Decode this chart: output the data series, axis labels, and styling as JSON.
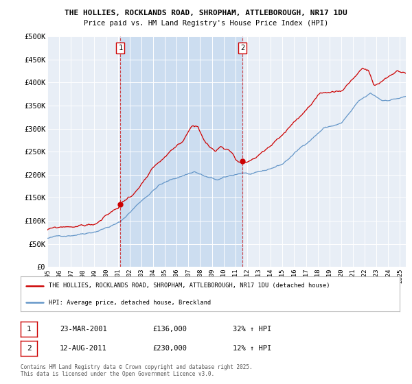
{
  "title1": "THE HOLLIES, ROCKLANDS ROAD, SHROPHAM, ATTLEBOROUGH, NR17 1DU",
  "title2": "Price paid vs. HM Land Registry's House Price Index (HPI)",
  "legend_line1": "THE HOLLIES, ROCKLANDS ROAD, SHROPHAM, ATTLEBOROUGH, NR17 1DU (detached house)",
  "legend_line2": "HPI: Average price, detached house, Breckland",
  "annotation1_label": "1",
  "annotation1_date": "23-MAR-2001",
  "annotation1_price": "£136,000",
  "annotation1_hpi": "32% ↑ HPI",
  "annotation2_label": "2",
  "annotation2_date": "12-AUG-2011",
  "annotation2_price": "£230,000",
  "annotation2_hpi": "12% ↑ HPI",
  "footnote": "Contains HM Land Registry data © Crown copyright and database right 2025.\nThis data is licensed under the Open Government Licence v3.0.",
  "hpi_color": "#6496c8",
  "price_color": "#cc0000",
  "vline_color": "#cc0000",
  "shade_color": "#ccddf0",
  "background_color": "#ffffff",
  "plot_bg_color": "#e8eef6",
  "ylim": [
    0,
    500000
  ],
  "yticks": [
    0,
    50000,
    100000,
    150000,
    200000,
    250000,
    300000,
    350000,
    400000,
    450000,
    500000
  ],
  "ytick_labels": [
    "£0",
    "£50K",
    "£100K",
    "£150K",
    "£200K",
    "£250K",
    "£300K",
    "£350K",
    "£400K",
    "£450K",
    "£500K"
  ],
  "vline1_x": 2001.22,
  "vline2_x": 2011.62,
  "marker1_y": 136000,
  "marker2_y": 230000,
  "xlim_start": 1995.0,
  "xlim_end": 2025.5
}
